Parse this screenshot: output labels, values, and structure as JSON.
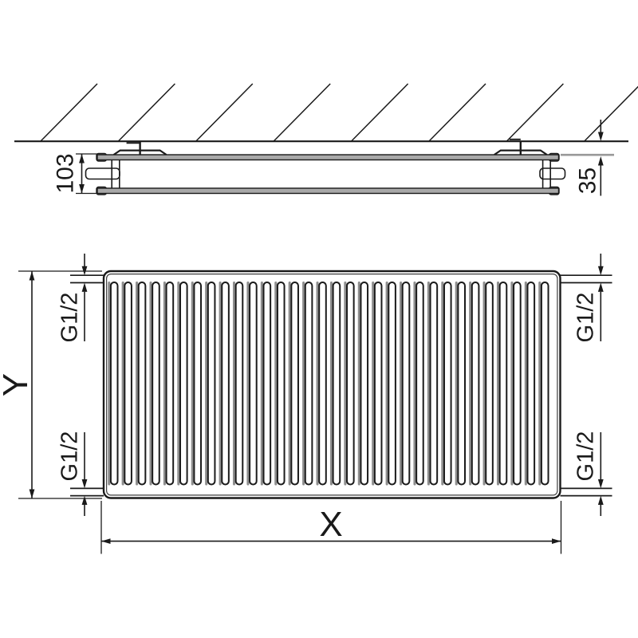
{
  "drawing": {
    "title": "panel radiator technical drawing, side view and front view",
    "labels": {
      "depth_total": "103",
      "wall_distance": "35",
      "height": "Y",
      "width": "X",
      "connection": "G1/2"
    },
    "side_view": {
      "hatch_count": 8
    },
    "front_view": {
      "corrugation_count": 32
    },
    "colors": {
      "line": "#1a1a1a",
      "panel_gray": "#a9a9a9",
      "groove_gray": "#8e8e8e",
      "groove_dark": "#1b1b1b",
      "extension_gray": "#999999",
      "inner_outline": "#3f3f3f"
    }
  }
}
